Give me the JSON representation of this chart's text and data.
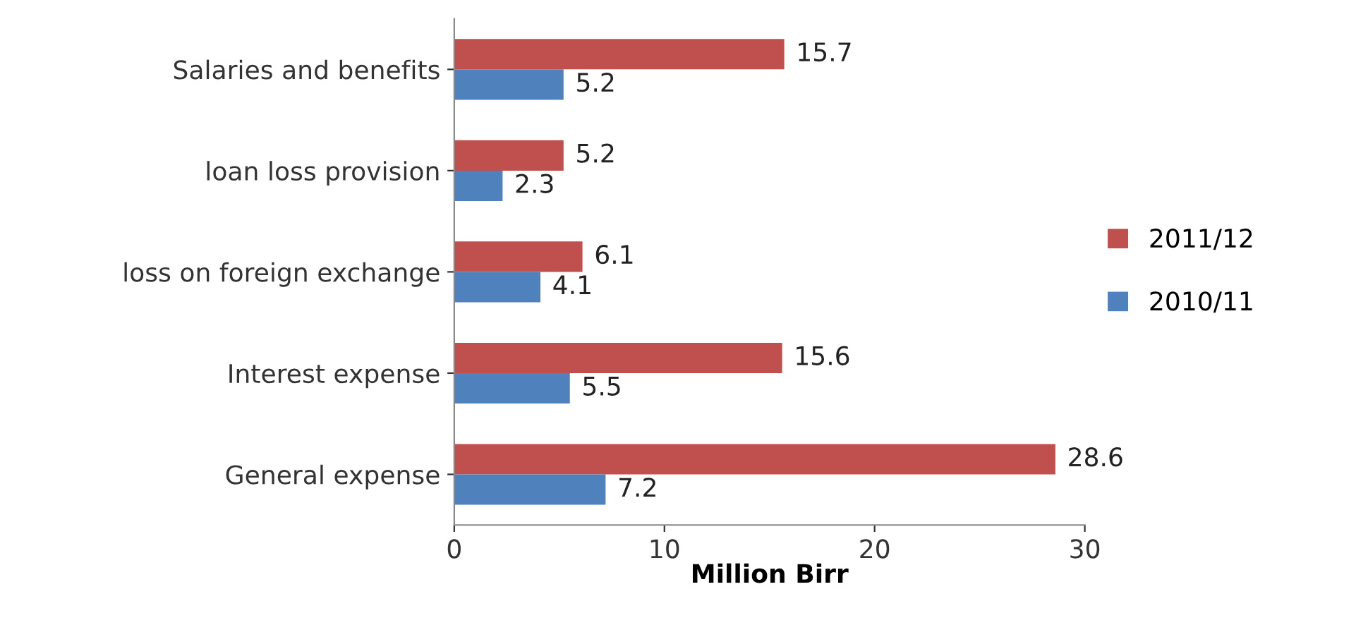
{
  "chart_data": {
    "type": "bar",
    "orientation": "horizontal",
    "xlabel": "Million Birr",
    "categories": [
      "Salaries and benefits",
      "loan loss provision",
      "loss on foreign exchange",
      "Interest expense",
      "General expense"
    ],
    "series": [
      {
        "name": "2011/12",
        "color": "#c0504d",
        "values": [
          15.7,
          5.2,
          6.1,
          15.6,
          28.6
        ]
      },
      {
        "name": "2010/11",
        "color": "#4f81bd",
        "values": [
          5.2,
          2.3,
          4.1,
          5.5,
          7.2
        ]
      }
    ],
    "xlim": [
      0,
      30
    ],
    "xticks": [
      0,
      10,
      20,
      30
    ],
    "data_labels": true,
    "grid": false,
    "legend": "right"
  }
}
